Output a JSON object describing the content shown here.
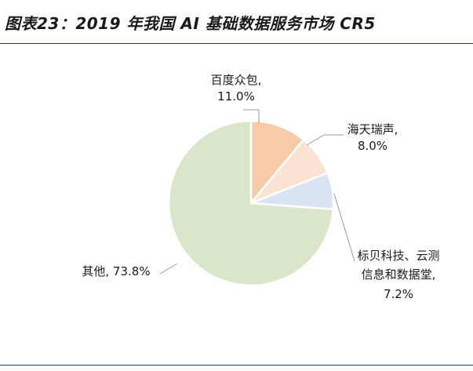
{
  "title": "图表23：2019 年我国 AI 基础数据服务市场 CR5",
  "chart_data": {
    "type": "pie",
    "title": "图表23：2019 年我国 AI 基础数据服务市场 CR5",
    "slices": [
      {
        "name": "百度众包",
        "value": 11.0,
        "value_label": "11.0%",
        "color": "#f8cba8",
        "label_lines": [
          "百度众包,",
          "11.0%"
        ]
      },
      {
        "name": "海天瑞声",
        "value": 8.0,
        "value_label": "8.0%",
        "color": "#fbe3d3",
        "label_lines": [
          "海天瑞声,",
          "8.0%"
        ]
      },
      {
        "name": "标贝科技、云测信息和数据堂",
        "value": 7.2,
        "value_label": "7.2%",
        "color": "#dae3f3",
        "label_lines": [
          "标贝科技、云测",
          "信息和数据堂,",
          "7.2%"
        ]
      },
      {
        "name": "其他",
        "value": 73.8,
        "value_label": "73.8%",
        "color": "#d9e6c9",
        "label_lines": [
          "其他, 73.8%"
        ]
      }
    ],
    "start": "12 o'clock, clockwise"
  }
}
